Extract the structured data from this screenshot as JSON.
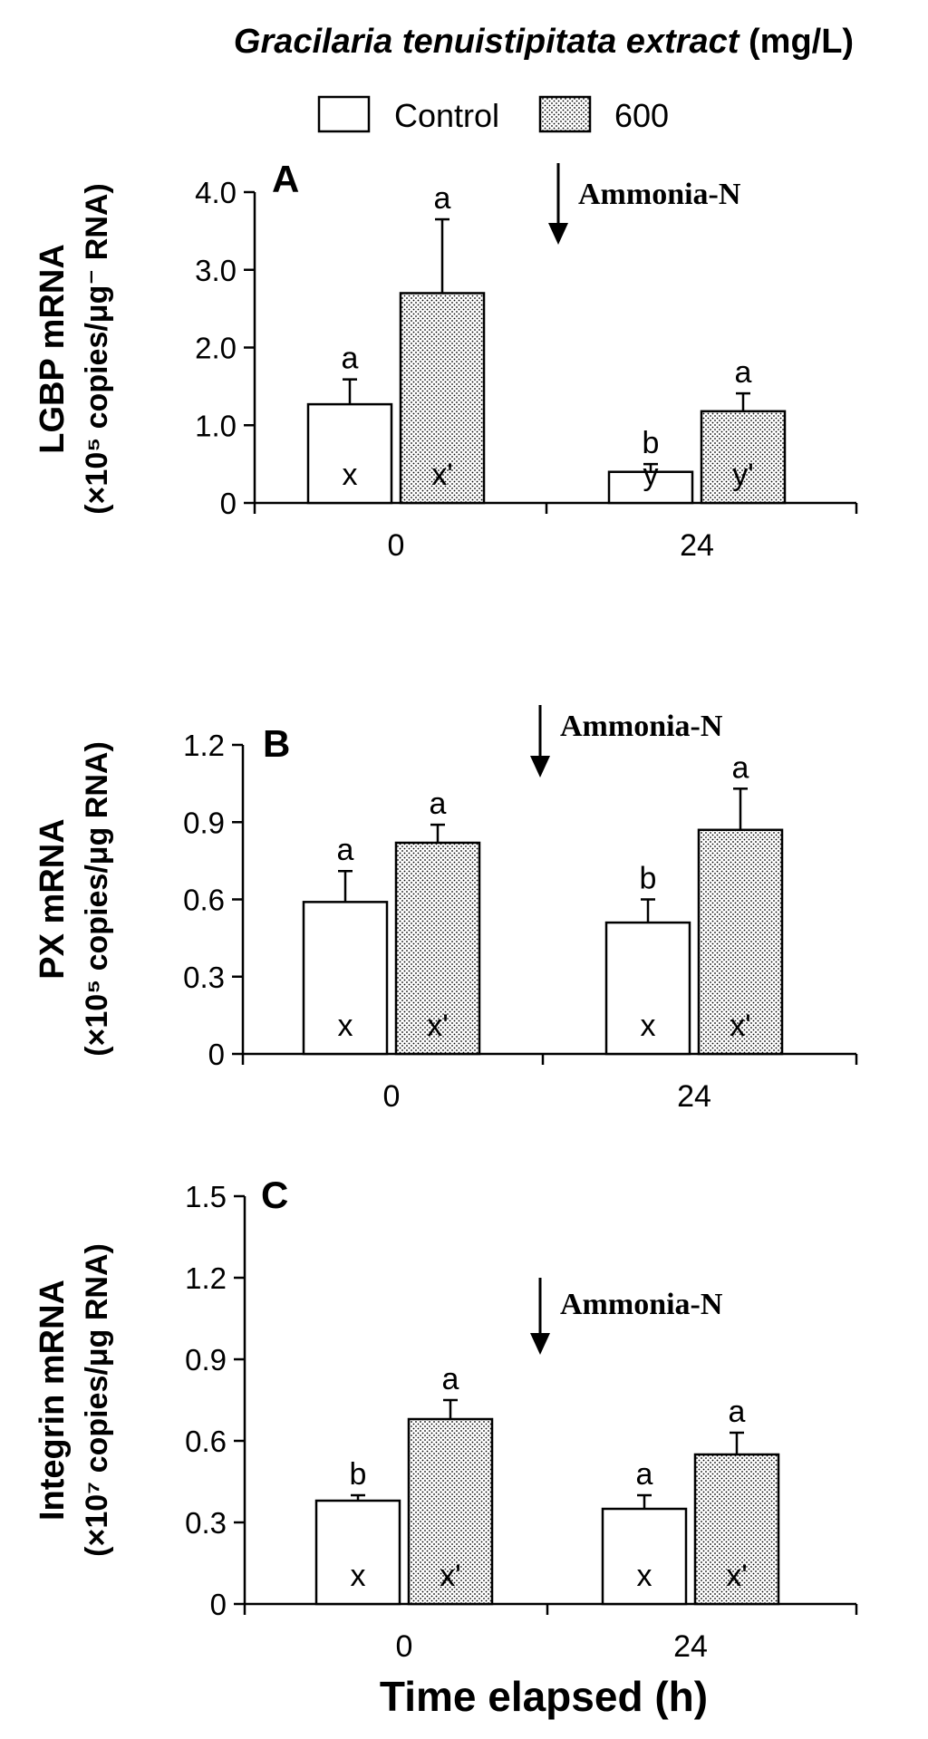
{
  "figure": {
    "title_italic": "Gracilaria tenuistipitata extract",
    "title_unit": " (mg/L)",
    "xlabel": "Time elapsed (h)",
    "legend": [
      {
        "name": "Control",
        "pattern": "plain"
      },
      {
        "name": "600",
        "pattern": "dotted"
      }
    ],
    "arrow_label": "Ammonia-N"
  },
  "chart_data": [
    {
      "type": "bar",
      "panel_label": "A",
      "ylabel_main": "LGBP mRNA",
      "ylabel_unit": "(×10⁵ copies/μg⁻ RNA)",
      "categories": [
        "0",
        "24"
      ],
      "yticks": [
        "0",
        "1.0",
        "2.0",
        "3.0",
        "4.0"
      ],
      "ylim": [
        0,
        4.0
      ],
      "series": [
        {
          "name": "Control",
          "values": [
            1.27,
            0.4
          ],
          "errors": [
            0.32,
            0.1
          ],
          "letters_top": [
            "a",
            "b"
          ],
          "letters_in": [
            "x",
            "y"
          ]
        },
        {
          "name": "600",
          "values": [
            2.7,
            1.18
          ],
          "errors": [
            0.95,
            0.23
          ],
          "letters_top": [
            "a",
            "a"
          ],
          "letters_in": [
            "x'",
            "y'"
          ]
        }
      ]
    },
    {
      "type": "bar",
      "panel_label": "B",
      "ylabel_main": "PX mRNA",
      "ylabel_unit": "(×10⁵ copies/μg RNA)",
      "categories": [
        "0",
        "24"
      ],
      "yticks": [
        "0",
        "0.3",
        "0.6",
        "0.9",
        "1.2"
      ],
      "ylim": [
        0,
        1.2
      ],
      "series": [
        {
          "name": "Control",
          "values": [
            0.59,
            0.51
          ],
          "errors": [
            0.12,
            0.09
          ],
          "letters_top": [
            "a",
            "b"
          ],
          "letters_in": [
            "x",
            "x"
          ]
        },
        {
          "name": "600",
          "values": [
            0.82,
            0.87
          ],
          "errors": [
            0.07,
            0.16
          ],
          "letters_top": [
            "a",
            "a"
          ],
          "letters_in": [
            "x'",
            "x'"
          ]
        }
      ]
    },
    {
      "type": "bar",
      "panel_label": "C",
      "ylabel_main": "Integrin mRNA",
      "ylabel_unit": "(×10⁷ copies/μg RNA)",
      "categories": [
        "0",
        "24"
      ],
      "yticks": [
        "0",
        "0.3",
        "0.6",
        "0.9",
        "1.2",
        "1.5"
      ],
      "ylim": [
        0,
        1.5
      ],
      "series": [
        {
          "name": "Control",
          "values": [
            0.38,
            0.35
          ],
          "errors": [
            0.02,
            0.05
          ],
          "letters_top": [
            "b",
            "a"
          ],
          "letters_in": [
            "x",
            "x"
          ]
        },
        {
          "name": "600",
          "values": [
            0.68,
            0.55
          ],
          "errors": [
            0.07,
            0.08
          ],
          "letters_top": [
            "a",
            "a"
          ],
          "letters_in": [
            "x'",
            "x'"
          ]
        }
      ]
    }
  ]
}
